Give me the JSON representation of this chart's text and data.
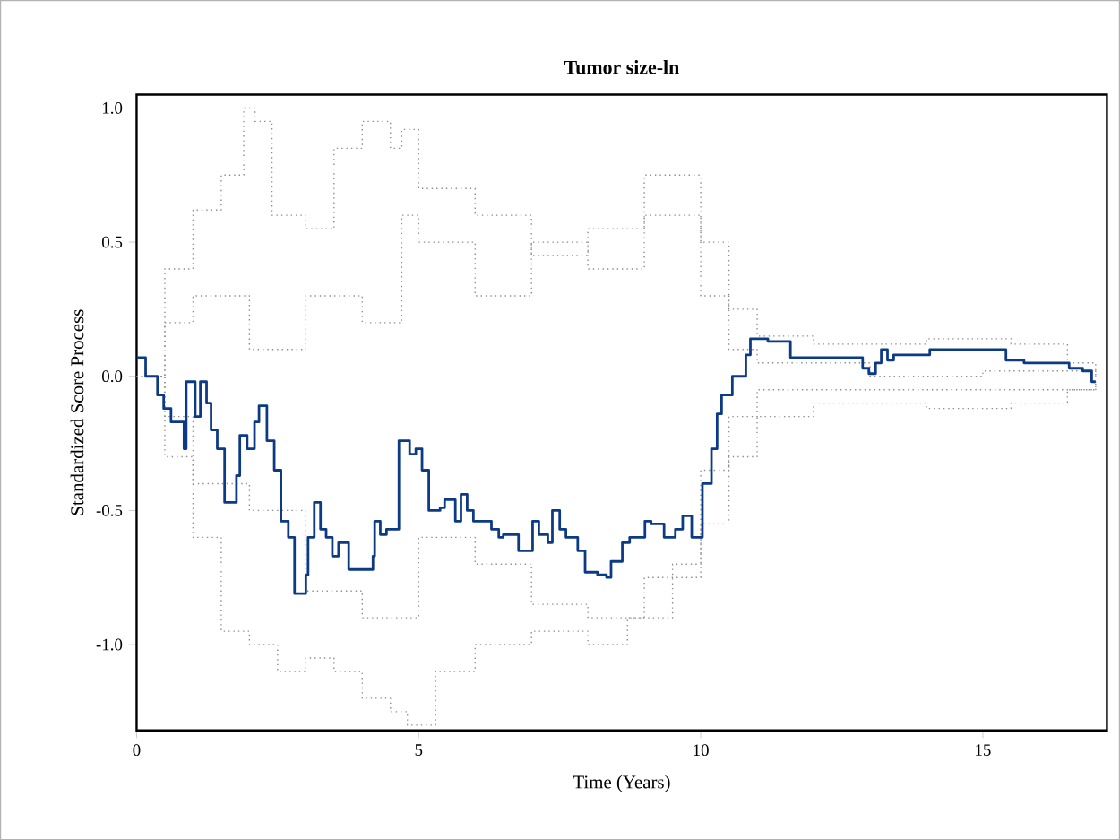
{
  "chart_data": {
    "type": "step",
    "title": "Tumor size-ln",
    "xlabel": "Time (Years)",
    "ylabel": "Standardized Score Process",
    "xlim": [
      0,
      17.2
    ],
    "ylim": [
      -1.32,
      1.05
    ],
    "xticks": [
      0,
      5,
      10,
      15
    ],
    "yticks": [
      {
        "value": -1.0,
        "label": "-1.0"
      },
      {
        "value": -0.5,
        "label": "-0.5"
      },
      {
        "value": 0.0,
        "label": "0.0"
      },
      {
        "value": 0.5,
        "label": "0.5"
      },
      {
        "value": 1.0,
        "label": "1.0"
      }
    ],
    "series": [
      {
        "color": "#8c8c8c",
        "line_style": "dotted",
        "x": [
          0,
          0.5,
          1,
          1.5,
          1.9,
          2.1,
          2.4,
          3,
          3.5,
          4,
          4.5,
          4.7,
          5,
          6,
          7,
          8,
          9,
          10,
          10.5,
          11,
          12,
          14,
          15.5,
          16.5,
          17
        ],
        "values": [
          0,
          0.4,
          0.62,
          0.75,
          1.0,
          0.95,
          0.6,
          0.55,
          0.85,
          0.95,
          0.85,
          0.92,
          0.7,
          0.6,
          0.45,
          0.55,
          0.75,
          0.5,
          0.25,
          0.15,
          0.12,
          0.14,
          0.12,
          0.05,
          0.0
        ]
      },
      {
        "color": "#8c8c8c",
        "line_style": "dotted",
        "x": [
          0,
          0.5,
          1,
          1.5,
          2,
          2.5,
          3,
          3.5,
          4,
          4.5,
          4.8,
          5.3,
          6,
          7,
          8,
          8.7,
          9.5,
          10,
          10.5,
          11,
          12,
          14,
          15.5,
          16.5,
          17
        ],
        "values": [
          0,
          -0.3,
          -0.6,
          -0.95,
          -1.0,
          -1.1,
          -1.05,
          -1.1,
          -1.2,
          -1.25,
          -1.3,
          -1.1,
          -1.0,
          -0.95,
          -1.0,
          -0.9,
          -0.7,
          -0.55,
          -0.3,
          -0.15,
          -0.1,
          -0.12,
          -0.1,
          -0.05,
          -0.02
        ]
      },
      {
        "color": "#8c8c8c",
        "line_style": "dotted",
        "x": [
          0,
          0.5,
          1,
          2,
          3,
          4,
          4.7,
          5,
          6,
          7,
          8,
          9,
          10,
          10.5,
          11,
          13,
          15,
          17
        ],
        "values": [
          0,
          0.2,
          0.3,
          0.1,
          0.3,
          0.2,
          0.6,
          0.5,
          0.3,
          0.5,
          0.4,
          0.6,
          0.3,
          0.1,
          0.05,
          0.0,
          0.02,
          0.0
        ]
      },
      {
        "color": "#8c8c8c",
        "line_style": "dotted",
        "x": [
          0,
          0.5,
          1,
          2,
          3,
          4,
          5,
          6,
          7,
          8,
          9,
          10,
          10.5,
          11,
          13,
          15,
          17
        ],
        "values": [
          0,
          -0.15,
          -0.4,
          -0.5,
          -0.8,
          -0.9,
          -0.6,
          -0.7,
          -0.85,
          -0.9,
          -0.75,
          -0.35,
          -0.15,
          -0.05,
          -0.05,
          -0.05,
          -0.02
        ]
      },
      {
        "color": "#0d3a85",
        "line_style": "solid",
        "x": [
          0,
          0.16,
          0.37,
          0.48,
          0.61,
          0.84,
          0.88,
          1.04,
          1.13,
          1.24,
          1.32,
          1.43,
          1.56,
          1.77,
          1.83,
          1.96,
          2.09,
          2.17,
          2.31,
          2.44,
          2.56,
          2.69,
          2.8,
          3.0,
          3.04,
          3.15,
          3.26,
          3.36,
          3.47,
          3.58,
          3.76,
          4.19,
          4.22,
          4.32,
          4.43,
          4.65,
          4.84,
          4.95,
          5.06,
          5.18,
          5.38,
          5.46,
          5.65,
          5.75,
          5.86,
          5.97,
          6.29,
          6.42,
          6.5,
          6.77,
          7.02,
          7.13,
          7.29,
          7.37,
          7.5,
          7.61,
          7.82,
          7.95,
          8.17,
          8.33,
          8.41,
          8.61,
          8.74,
          9.01,
          9.12,
          9.35,
          9.55,
          9.68,
          9.84,
          10.03,
          10.19,
          10.29,
          10.37,
          10.56,
          10.8,
          10.88,
          11.19,
          11.59,
          12.87,
          12.98,
          13.1,
          13.2,
          13.31,
          13.42,
          14.06,
          15.41,
          15.73,
          16.53,
          16.77,
          16.93,
          17.0
        ],
        "values": [
          0.07,
          0.0,
          -0.07,
          -0.12,
          -0.17,
          -0.27,
          -0.02,
          -0.15,
          -0.02,
          -0.1,
          -0.2,
          -0.27,
          -0.47,
          -0.37,
          -0.22,
          -0.27,
          -0.17,
          -0.11,
          -0.24,
          -0.35,
          -0.54,
          -0.6,
          -0.81,
          -0.74,
          -0.6,
          -0.47,
          -0.57,
          -0.6,
          -0.67,
          -0.62,
          -0.72,
          -0.67,
          -0.54,
          -0.59,
          -0.57,
          -0.24,
          -0.29,
          -0.27,
          -0.35,
          -0.5,
          -0.49,
          -0.46,
          -0.54,
          -0.44,
          -0.5,
          -0.54,
          -0.57,
          -0.6,
          -0.59,
          -0.65,
          -0.54,
          -0.59,
          -0.62,
          -0.5,
          -0.57,
          -0.6,
          -0.65,
          -0.73,
          -0.74,
          -0.75,
          -0.69,
          -0.62,
          -0.6,
          -0.54,
          -0.55,
          -0.6,
          -0.57,
          -0.52,
          -0.6,
          -0.4,
          -0.27,
          -0.14,
          -0.07,
          0.0,
          0.08,
          0.14,
          0.13,
          0.07,
          0.03,
          0.01,
          0.05,
          0.1,
          0.06,
          0.08,
          0.1,
          0.06,
          0.05,
          0.03,
          0.02,
          -0.02,
          -0.02
        ]
      }
    ]
  }
}
